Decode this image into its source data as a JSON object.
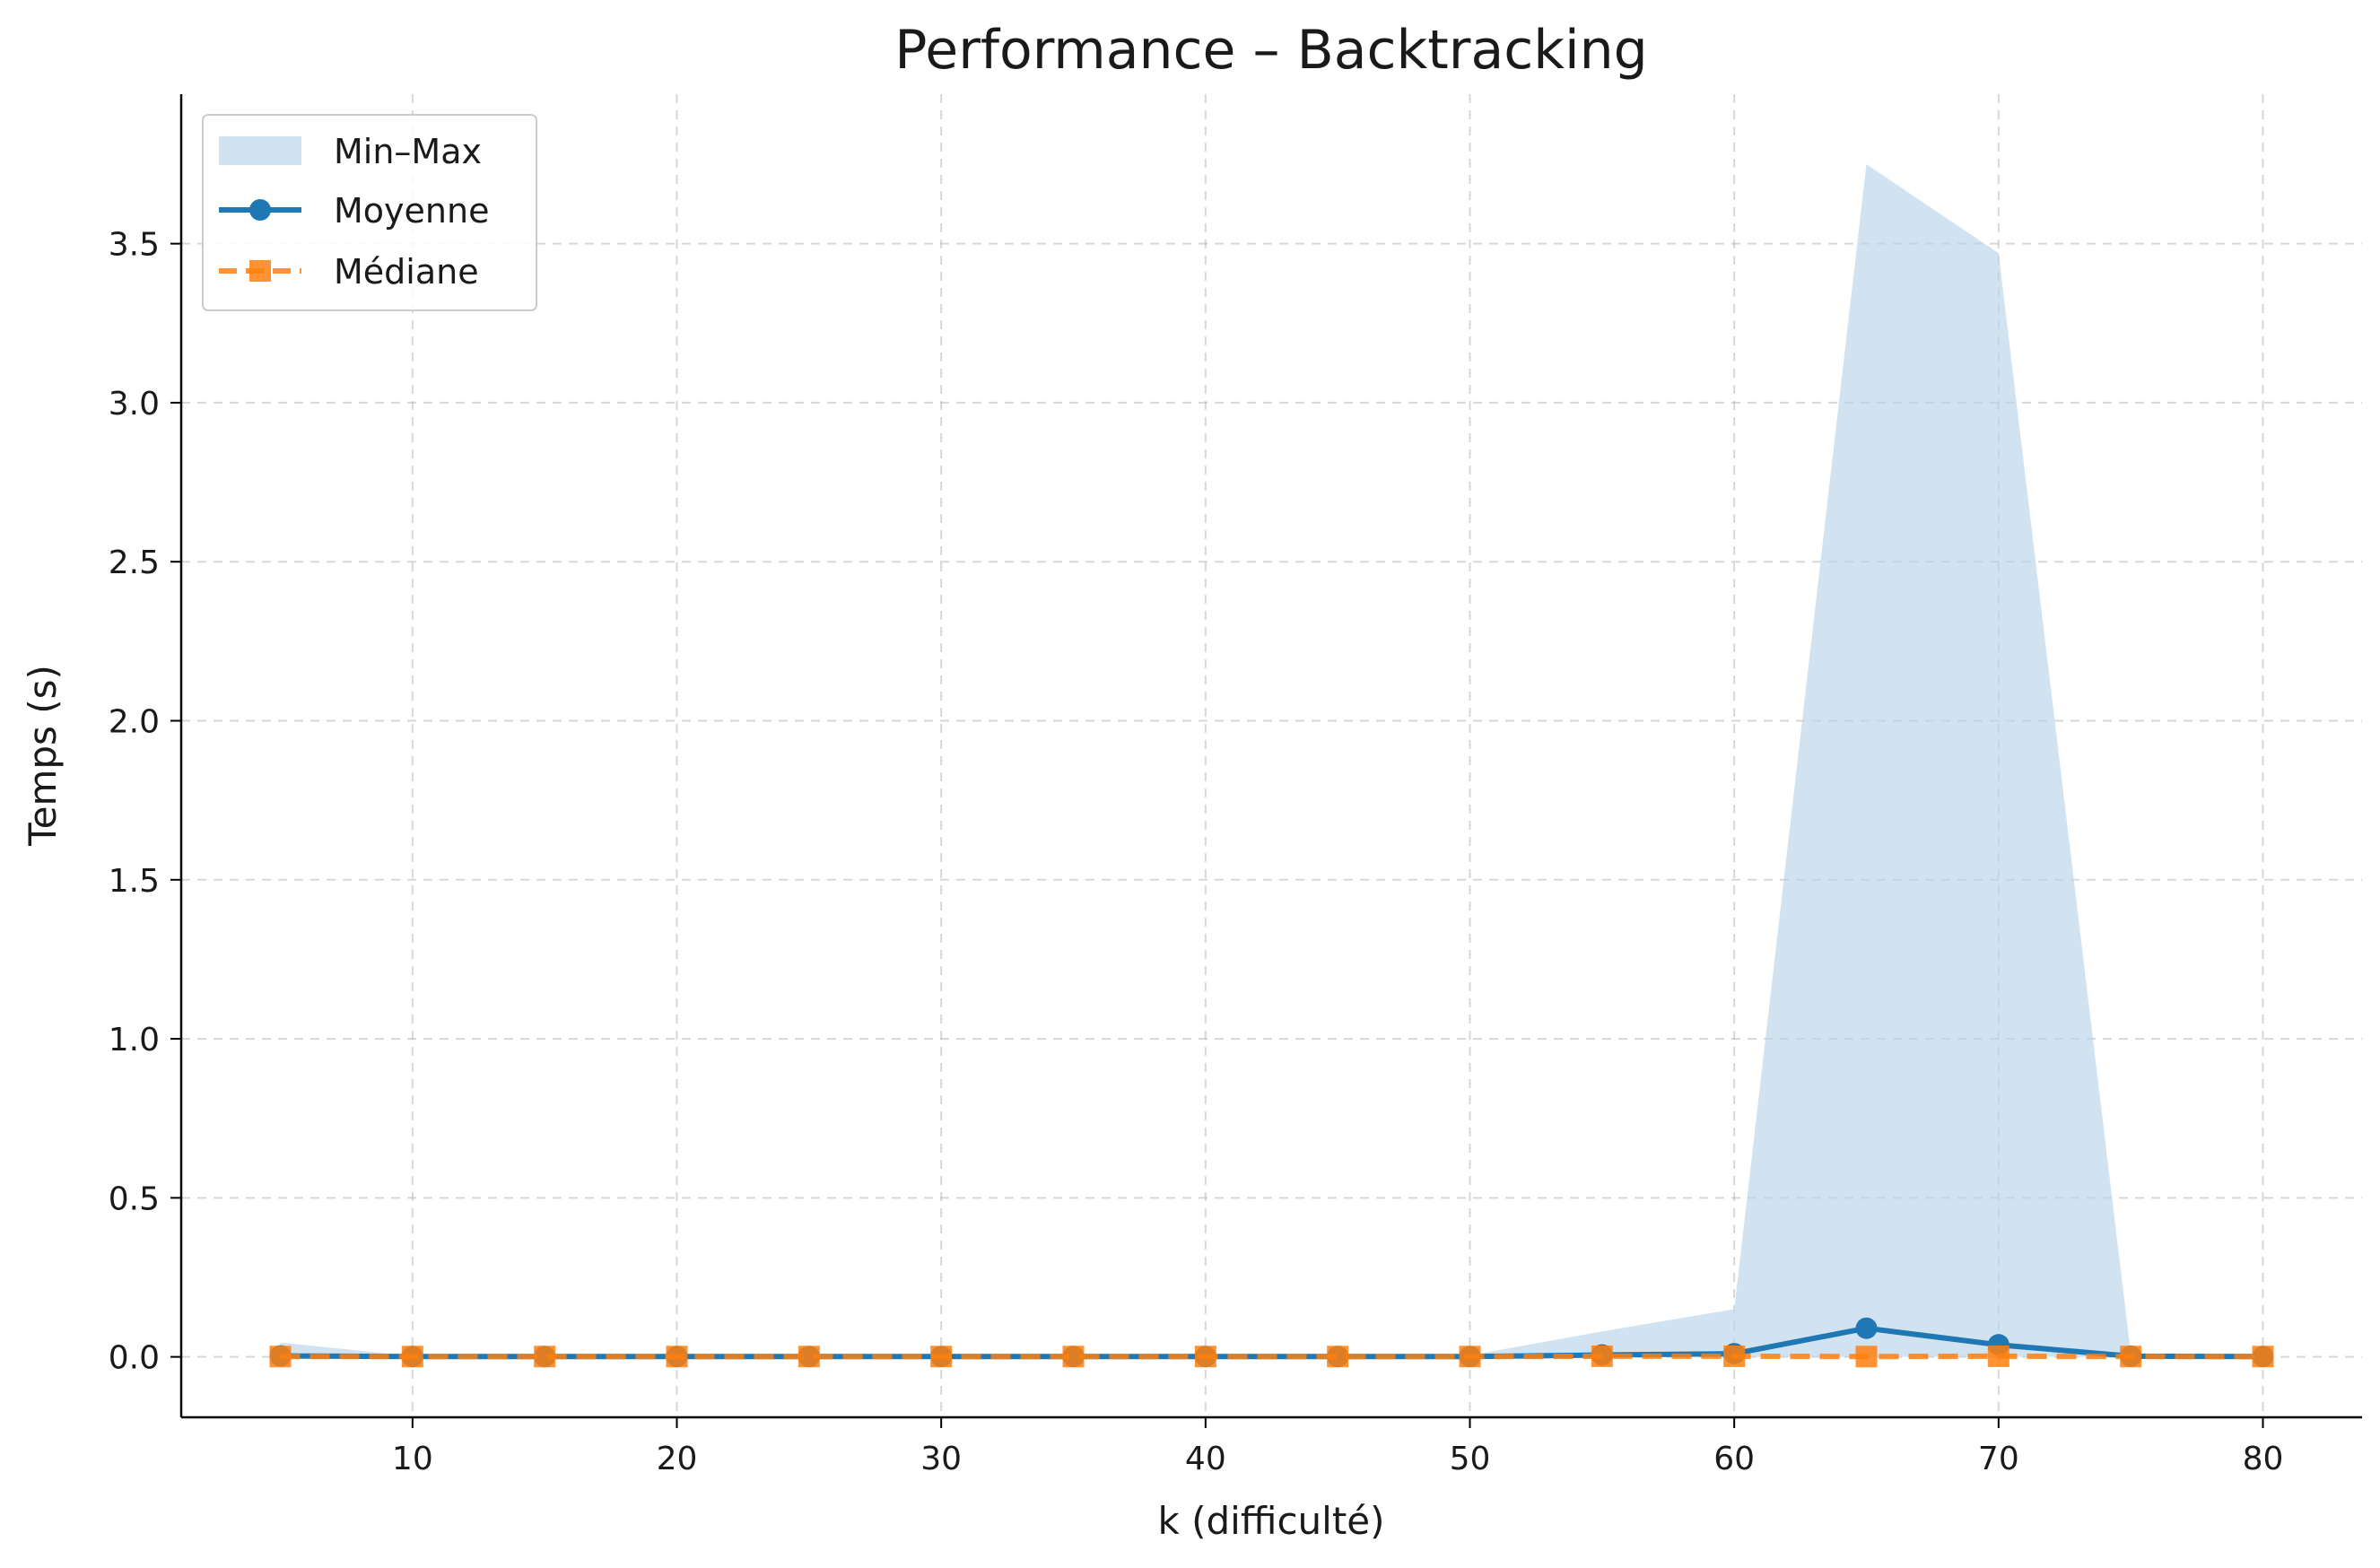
{
  "chart_data": {
    "type": "line",
    "title": "Performance – Backtracking",
    "xlabel": "k (difficulté)",
    "ylabel": "Temps (s)",
    "x": [
      5,
      10,
      15,
      20,
      25,
      30,
      35,
      40,
      45,
      50,
      55,
      60,
      65,
      70,
      75,
      80
    ],
    "xlim": [
      1.25,
      83.75
    ],
    "ylim": [
      -0.19,
      3.97
    ],
    "xticks": [
      10,
      20,
      30,
      40,
      50,
      60,
      70,
      80
    ],
    "xtick_labels": [
      "10",
      "20",
      "30",
      "40",
      "50",
      "60",
      "70",
      "80"
    ],
    "yticks": [
      0.0,
      0.5,
      1.0,
      1.5,
      2.0,
      2.5,
      3.0,
      3.5
    ],
    "ytick_labels": [
      "0.0",
      "0.5",
      "1.0",
      "1.5",
      "2.0",
      "2.5",
      "3.0",
      "3.5"
    ],
    "grid": true,
    "legend_position": "top-left",
    "band": {
      "name": "Min–Max",
      "color": "#b9d4e8",
      "min": [
        0,
        0,
        0,
        0,
        0,
        0,
        0,
        0,
        0,
        0,
        0,
        0,
        0,
        0,
        0,
        0
      ],
      "max": [
        0.045,
        0.003,
        0.003,
        0.003,
        0.003,
        0.003,
        0.003,
        0.003,
        0.003,
        0.005,
        0.08,
        0.15,
        3.75,
        3.47,
        0.01,
        0.003
      ]
    },
    "series": [
      {
        "name": "Moyenne",
        "color": "#1f77b4",
        "marker": "circle",
        "linestyle": "solid",
        "values": [
          0.003,
          0.001,
          0.001,
          0.001,
          0.001,
          0.001,
          0.001,
          0.001,
          0.001,
          0.001,
          0.006,
          0.01,
          0.09,
          0.038,
          0.002,
          0.001
        ]
      },
      {
        "name": "Médiane",
        "color": "#ff7f0e",
        "marker": "square",
        "linestyle": "dashed",
        "values": [
          0.001,
          0.001,
          0.001,
          0.001,
          0.001,
          0.001,
          0.001,
          0.001,
          0.001,
          0.001,
          0.002,
          0.002,
          0.001,
          0.002,
          0.001,
          0.001
        ]
      }
    ]
  }
}
